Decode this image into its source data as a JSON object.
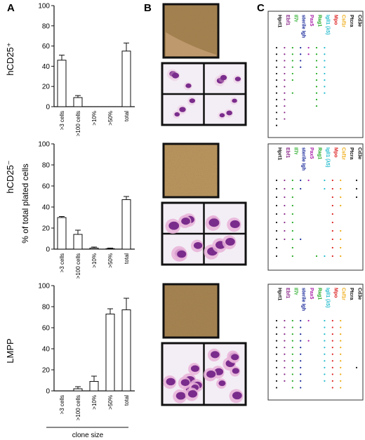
{
  "panels": {
    "a": "A",
    "b": "B",
    "c": "C"
  },
  "row_labels": [
    "hCD25⁺",
    "hCD25⁻",
    "LMPP"
  ],
  "y_axis_label": "% of total plated cells",
  "x_axis_label": "clone size",
  "chart_data": [
    {
      "type": "bar",
      "categories": [
        ">3 cells",
        ">100 cells",
        ">10%",
        ">50%",
        "total"
      ],
      "values": [
        46,
        9,
        0,
        0,
        55
      ],
      "errors": [
        5,
        2,
        0,
        0,
        8
      ],
      "ylim": [
        0,
        100
      ],
      "yticks": [
        "0",
        "20",
        "40",
        "60",
        "80",
        "100"
      ]
    },
    {
      "type": "bar",
      "categories": [
        ">3 cells",
        ">100 cells",
        ">10%",
        ">50%",
        "total"
      ],
      "values": [
        30,
        14,
        1,
        0.5,
        47
      ],
      "errors": [
        1,
        4,
        1,
        0.5,
        3
      ],
      "ylim": [
        0,
        100
      ],
      "yticks": [
        "0",
        "20",
        "40",
        "60",
        "80",
        "100"
      ]
    },
    {
      "type": "bar",
      "categories": [
        ">3 cells",
        ">100 cells",
        ">10%",
        ">50%",
        "total"
      ],
      "values": [
        0,
        2,
        9,
        73,
        77
      ],
      "errors": [
        0,
        2,
        5,
        5,
        11
      ],
      "ylim": [
        0,
        100
      ],
      "yticks": [
        "0",
        "20",
        "40",
        "60",
        "80",
        "100"
      ]
    }
  ],
  "genes": [
    {
      "name": "Hprt1",
      "color": "#111111"
    },
    {
      "name": "Ebf1",
      "color": "#8a2a8a"
    },
    {
      "name": "Il7r",
      "color": "#22aa22"
    },
    {
      "name": "sterile Igh",
      "color": "#1a2a9a"
    },
    {
      "name": "Pax5",
      "color": "#aa22aa"
    },
    {
      "name": "Rag1",
      "color": "#22aa22"
    },
    {
      "name": "Igll1 (λ5)",
      "color": "#22bbcc"
    },
    {
      "name": "Mpo",
      "color": "#dd2222"
    },
    {
      "name": "Csf1r",
      "color": "#eeaa11"
    },
    {
      "name": "Ptcra",
      "color": "#111111"
    },
    {
      "name": "Cd3e",
      "color": "#111111"
    }
  ],
  "expression_grids": [
    {
      "cells": [
        [
          1,
          1,
          1,
          1,
          1,
          1,
          1,
          0,
          0,
          0,
          0
        ],
        [
          1,
          1,
          1,
          1,
          1,
          1,
          1,
          0,
          0,
          0,
          0
        ],
        [
          1,
          1,
          1,
          1,
          0,
          1,
          1,
          0,
          0,
          0,
          0
        ],
        [
          1,
          1,
          1,
          1,
          0,
          1,
          1,
          0,
          0,
          0,
          0
        ],
        [
          1,
          1,
          1,
          0,
          0,
          1,
          1,
          0,
          0,
          0,
          0
        ],
        [
          1,
          1,
          1,
          0,
          0,
          1,
          1,
          0,
          0,
          0,
          0
        ],
        [
          1,
          1,
          0,
          0,
          0,
          1,
          1,
          0,
          0,
          0,
          0
        ],
        [
          1,
          1,
          1,
          0,
          0,
          1,
          1,
          0,
          0,
          0,
          0
        ],
        [
          1,
          1,
          0,
          0,
          0,
          1,
          0,
          0,
          0,
          0,
          0
        ],
        [
          1,
          1,
          0,
          0,
          0,
          1,
          0,
          0,
          0,
          0,
          0
        ],
        [
          1,
          1,
          0,
          0,
          0,
          0,
          0,
          0,
          0,
          0,
          0
        ],
        [
          1,
          1,
          0,
          0,
          0,
          0,
          0,
          0,
          0,
          0,
          0
        ],
        [
          1,
          0,
          0,
          0,
          0,
          0,
          0,
          0,
          0,
          0,
          0
        ]
      ]
    },
    {
      "cells": [
        [
          1,
          1,
          1,
          1,
          1,
          0,
          1,
          1,
          1,
          0,
          1
        ],
        [
          1,
          1,
          1,
          1,
          0,
          0,
          1,
          1,
          1,
          0,
          1
        ],
        [
          1,
          1,
          1,
          0,
          0,
          0,
          0,
          1,
          1,
          0,
          1
        ],
        [
          1,
          1,
          1,
          0,
          0,
          0,
          0,
          1,
          1,
          0,
          0
        ],
        [
          1,
          1,
          1,
          0,
          0,
          0,
          0,
          1,
          0,
          0,
          0
        ],
        [
          1,
          1,
          1,
          0,
          0,
          0,
          0,
          1,
          0,
          0,
          0
        ],
        [
          1,
          1,
          1,
          0,
          0,
          0,
          0,
          1,
          1,
          0,
          0
        ],
        [
          1,
          1,
          1,
          1,
          0,
          0,
          0,
          1,
          1,
          0,
          0
        ],
        [
          1,
          0,
          1,
          0,
          0,
          0,
          0,
          1,
          1,
          0,
          0
        ],
        [
          1,
          0,
          1,
          0,
          0,
          1,
          1,
          1,
          1,
          0,
          0
        ]
      ]
    },
    {
      "cells": [
        [
          1,
          1,
          1,
          1,
          1,
          0,
          1,
          1,
          1,
          0,
          0
        ],
        [
          1,
          1,
          1,
          1,
          0,
          0,
          1,
          1,
          1,
          0,
          0
        ],
        [
          1,
          1,
          1,
          1,
          0,
          0,
          1,
          1,
          1,
          0,
          0
        ],
        [
          1,
          1,
          1,
          1,
          1,
          0,
          1,
          1,
          1,
          0,
          0
        ],
        [
          1,
          1,
          1,
          1,
          0,
          0,
          1,
          1,
          1,
          0,
          0
        ],
        [
          1,
          1,
          1,
          1,
          0,
          0,
          1,
          1,
          1,
          0,
          0
        ],
        [
          1,
          1,
          1,
          1,
          0,
          0,
          1,
          1,
          1,
          0,
          0
        ],
        [
          1,
          1,
          1,
          1,
          0,
          0,
          1,
          1,
          1,
          0,
          1
        ],
        [
          1,
          1,
          1,
          1,
          0,
          0,
          1,
          1,
          1,
          0,
          0
        ],
        [
          1,
          1,
          1,
          1,
          0,
          0,
          1,
          1,
          1,
          0,
          0
        ],
        [
          1,
          0,
          1,
          1,
          0,
          0,
          0,
          1,
          1,
          0,
          0
        ]
      ]
    }
  ],
  "micrograph_colors": {
    "colony_bg": "#b3895a",
    "stain_bg": "#f3eef5",
    "nucleus": "#7a2c8c",
    "cytoplasm": "#e8b2d8"
  }
}
